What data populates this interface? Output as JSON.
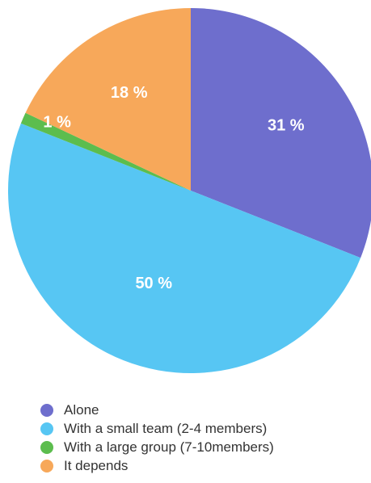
{
  "chart_data": {
    "type": "pie",
    "title": "",
    "categories": [
      "Alone",
      "With a small team (2-4 members)",
      "With a large group (7-10members)",
      "It depends"
    ],
    "values": [
      31,
      50,
      1,
      18
    ],
    "labels": [
      "31 %",
      "50 %",
      "1 %",
      "18 %"
    ],
    "colors": [
      "#6e6ecd",
      "#57c6f3",
      "#5cbd4e",
      "#f7a85a"
    ],
    "start_angle_deg": 0,
    "direction": "clockwise",
    "legend_position": "bottom-left"
  }
}
